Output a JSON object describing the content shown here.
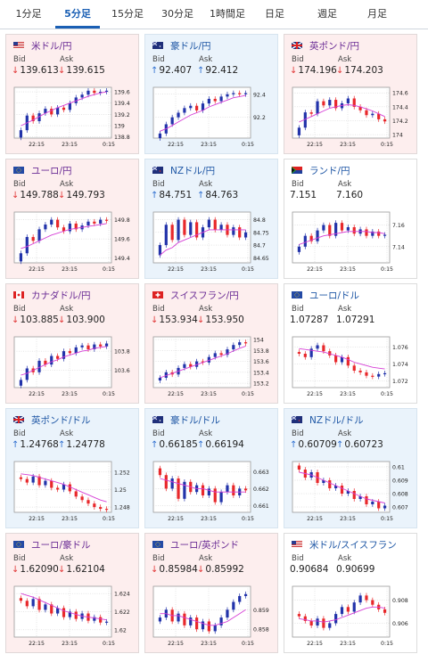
{
  "tabs": [
    {
      "label": "1分足",
      "active": false
    },
    {
      "label": "5分足",
      "active": true
    },
    {
      "label": "15分足",
      "active": false
    },
    {
      "label": "30分足",
      "active": false
    },
    {
      "label": "1時間足",
      "active": false
    },
    {
      "label": "日足",
      "active": false
    },
    {
      "label": "週足",
      "active": false
    },
    {
      "label": "月足",
      "active": false
    }
  ],
  "labels": {
    "bid": "Bid",
    "ask": "Ask"
  },
  "colors": {
    "up_candle": "#2233aa",
    "down_candle": "#e8282b",
    "moving_average": "#d63fd6",
    "grid": "#cccccc"
  },
  "cards": [
    {
      "title": "米ドル/円",
      "flag": "us-flag-icon",
      "trend": "down",
      "bid": "139.613",
      "ask": "139.615",
      "chart_data": {
        "type": "candlestick",
        "x_ticks": [
          "22:15",
          "23:15",
          "0:15"
        ],
        "y_ticks": [
          "139.6",
          "139.4",
          "139.2",
          "139",
          "138.8"
        ],
        "ylim": [
          138.78,
          139.68
        ],
        "closes": [
          138.92,
          139.18,
          139.08,
          139.22,
          139.3,
          139.2,
          139.32,
          139.28,
          139.4,
          139.5,
          139.55,
          139.62,
          139.58,
          139.6,
          139.62
        ],
        "ma": [
          139.0,
          139.05,
          139.1,
          139.16,
          139.22,
          139.27,
          139.32,
          139.36,
          139.4,
          139.44,
          139.48,
          139.52,
          139.55,
          139.58,
          139.6
        ]
      }
    },
    {
      "title": "豪ドル/円",
      "flag": "au-flag-icon",
      "trend": "up",
      "bid": "92.407",
      "ask": "92.412",
      "chart_data": {
        "type": "candlestick",
        "x_ticks": [
          "22:15",
          "23:15",
          "0:15"
        ],
        "y_ticks": [
          "92.4",
          "92.2"
        ],
        "ylim": [
          92.02,
          92.46
        ],
        "closes": [
          92.06,
          92.14,
          92.2,
          92.24,
          92.28,
          92.3,
          92.26,
          92.32,
          92.36,
          92.34,
          92.38,
          92.4,
          92.41,
          92.4,
          92.41
        ],
        "ma": [
          92.08,
          92.1,
          92.13,
          92.16,
          92.19,
          92.22,
          92.24,
          92.26,
          92.29,
          92.31,
          92.33,
          92.35,
          92.37,
          92.38,
          92.39
        ]
      }
    },
    {
      "title": "英ポンド/円",
      "flag": "uk-flag-icon",
      "trend": "down",
      "bid": "174.196",
      "ask": "174.203",
      "chart_data": {
        "type": "candlestick",
        "x_ticks": [
          "22:15",
          "23:15",
          "0:15"
        ],
        "y_ticks": [
          "174.6",
          "174.4",
          "174.2",
          "174"
        ],
        "ylim": [
          173.95,
          174.68
        ],
        "closes": [
          174.1,
          174.32,
          174.3,
          174.48,
          174.42,
          174.5,
          174.38,
          174.45,
          174.52,
          174.4,
          174.35,
          174.28,
          174.3,
          174.22,
          174.19
        ],
        "ma": [
          174.18,
          174.22,
          174.26,
          174.3,
          174.34,
          174.38,
          174.4,
          174.42,
          174.43,
          174.42,
          174.4,
          174.37,
          174.34,
          174.3,
          174.26
        ]
      }
    },
    {
      "title": "ユーロ/円",
      "flag": "eu-flag-icon",
      "trend": "down",
      "bid": "149.788",
      "ask": "149.793",
      "chart_data": {
        "type": "candlestick",
        "x_ticks": [
          "22:15",
          "23:15",
          "0:15"
        ],
        "y_ticks": [
          "149.8",
          "149.6",
          "149.4"
        ],
        "ylim": [
          149.35,
          149.88
        ],
        "closes": [
          149.45,
          149.62,
          149.58,
          149.7,
          149.75,
          149.8,
          149.72,
          149.68,
          149.76,
          149.7,
          149.74,
          149.78,
          149.76,
          149.8,
          149.79
        ],
        "ma": [
          149.5,
          149.52,
          149.55,
          149.58,
          149.61,
          149.64,
          149.66,
          149.68,
          149.7,
          149.71,
          149.72,
          149.73,
          149.74,
          149.75,
          149.76
        ]
      }
    },
    {
      "title": "NZドル/円",
      "flag": "nz-flag-icon",
      "trend": "up",
      "bid": "84.751",
      "ask": "84.763",
      "chart_data": {
        "type": "candlestick",
        "x_ticks": [
          "22:15",
          "23:15",
          "0:15"
        ],
        "y_ticks": [
          "84.8",
          "84.75",
          "84.7",
          "84.65"
        ],
        "ylim": [
          84.63,
          84.83
        ],
        "closes": [
          84.7,
          84.78,
          84.72,
          84.8,
          84.74,
          84.79,
          84.73,
          84.77,
          84.8,
          84.76,
          84.78,
          84.74,
          84.77,
          84.73,
          84.75
        ],
        "ma": [
          84.66,
          84.68,
          84.69,
          84.71,
          84.72,
          84.73,
          84.74,
          84.75,
          84.76,
          84.76,
          84.76,
          84.76,
          84.76,
          84.76,
          84.76
        ]
      }
    },
    {
      "title": "ランド/円",
      "flag": "za-flag-icon",
      "trend": "flat",
      "bid": "7.151",
      "ask": "7.160",
      "chart_data": {
        "type": "candlestick",
        "x_ticks": [
          "22:15",
          "23:15",
          "0:15"
        ],
        "y_ticks": [
          "7.16",
          "7.14"
        ],
        "ylim": [
          7.125,
          7.172
        ],
        "closes": [
          7.14,
          7.15,
          7.145,
          7.155,
          7.16,
          7.15,
          7.162,
          7.155,
          7.158,
          7.152,
          7.156,
          7.15,
          7.154,
          7.15,
          7.151
        ],
        "ma": [
          7.142,
          7.144,
          7.146,
          7.148,
          7.15,
          7.151,
          7.152,
          7.153,
          7.154,
          7.154,
          7.154,
          7.154,
          7.153,
          7.153,
          7.152
        ]
      }
    },
    {
      "title": "カナダドル/円",
      "flag": "ca-flag-icon",
      "trend": "down",
      "bid": "103.885",
      "ask": "103.900",
      "chart_data": {
        "type": "candlestick",
        "x_ticks": [
          "22:15",
          "23:15",
          "0:15"
        ],
        "y_ticks": [
          "103.8",
          "103.6"
        ],
        "ylim": [
          103.42,
          103.95
        ],
        "closes": [
          103.5,
          103.62,
          103.58,
          103.7,
          103.66,
          103.75,
          103.72,
          103.8,
          103.78,
          103.84,
          103.86,
          103.82,
          103.87,
          103.85,
          103.88
        ],
        "ma": [
          103.55,
          103.57,
          103.6,
          103.63,
          103.66,
          103.69,
          103.71,
          103.74,
          103.76,
          103.78,
          103.8,
          103.81,
          103.83,
          103.84,
          103.85
        ]
      }
    },
    {
      "title": "スイスフラン/円",
      "flag": "ch-flag-icon",
      "trend": "down",
      "bid": "153.934",
      "ask": "153.950",
      "chart_data": {
        "type": "candlestick",
        "x_ticks": [
          "22:15",
          "23:15",
          "0:15"
        ],
        "y_ticks": [
          "154",
          "153.8",
          "153.6",
          "153.4",
          "153.2"
        ],
        "ylim": [
          153.12,
          154.05
        ],
        "closes": [
          153.3,
          153.4,
          153.36,
          153.48,
          153.55,
          153.5,
          153.6,
          153.58,
          153.68,
          153.75,
          153.72,
          153.82,
          153.9,
          153.95,
          153.93
        ],
        "ma": [
          153.3,
          153.34,
          153.38,
          153.42,
          153.46,
          153.5,
          153.54,
          153.58,
          153.62,
          153.66,
          153.7,
          153.74,
          153.79,
          153.84,
          153.88
        ]
      }
    },
    {
      "title": "ユーロ/ドル",
      "flag": "eu-flag-icon",
      "trend": "flat",
      "bid": "1.07287",
      "ask": "1.07291",
      "chart_data": {
        "type": "candlestick",
        "x_ticks": [
          "22:15",
          "23:15",
          "0:15"
        ],
        "y_ticks": [
          "1.076",
          "1.074",
          "1.072"
        ],
        "ylim": [
          1.0712,
          1.0772
        ],
        "closes": [
          1.0752,
          1.0748,
          1.0758,
          1.0762,
          1.0755,
          1.075,
          1.0742,
          1.0748,
          1.0738,
          1.0732,
          1.073,
          1.0726,
          1.0725,
          1.0728,
          1.0729
        ],
        "ma": [
          1.0758,
          1.0757,
          1.0756,
          1.0755,
          1.0754,
          1.0752,
          1.075,
          1.0748,
          1.0745,
          1.0742,
          1.074,
          1.0738,
          1.0736,
          1.0735,
          1.0734
        ]
      }
    },
    {
      "title": "英ポンド/ドル",
      "flag": "uk-flag-icon",
      "trend": "up",
      "bid": "1.24768",
      "ask": "1.24778",
      "chart_data": {
        "type": "candlestick",
        "x_ticks": [
          "22:15",
          "23:15",
          "0:15"
        ],
        "y_ticks": [
          "1.252",
          "1.25",
          "1.248"
        ],
        "ylim": [
          1.2474,
          1.2532
        ],
        "closes": [
          1.2512,
          1.2508,
          1.2515,
          1.2505,
          1.251,
          1.2502,
          1.25,
          1.2506,
          1.2498,
          1.2492,
          1.2488,
          1.2484,
          1.248,
          1.2478,
          1.2477
        ],
        "ma": [
          1.2518,
          1.2517,
          1.2516,
          1.2514,
          1.2512,
          1.251,
          1.2508,
          1.2506,
          1.2503,
          1.25,
          1.2497,
          1.2494,
          1.2491,
          1.2488,
          1.2486
        ]
      }
    },
    {
      "title": "豪ドル/ドル",
      "flag": "au-flag-icon",
      "trend": "up",
      "bid": "0.66185",
      "ask": "0.66194",
      "chart_data": {
        "type": "candlestick",
        "x_ticks": [
          "22:15",
          "23:15",
          "0:15"
        ],
        "y_ticks": [
          "0.663",
          "0.662",
          "0.661"
        ],
        "ylim": [
          0.6606,
          0.6636
        ],
        "closes": [
          0.6628,
          0.662,
          0.6626,
          0.6614,
          0.6624,
          0.6618,
          0.6622,
          0.6616,
          0.662,
          0.6612,
          0.6618,
          0.6622,
          0.6616,
          0.662,
          0.6619
        ],
        "ma": [
          0.6626,
          0.6625,
          0.6624,
          0.6623,
          0.6622,
          0.6621,
          0.662,
          0.662,
          0.6619,
          0.6618,
          0.6618,
          0.6618,
          0.6618,
          0.6618,
          0.6618
        ]
      }
    },
    {
      "title": "NZドル/ドル",
      "flag": "nz-flag-icon",
      "trend": "up",
      "bid": "0.60709",
      "ask": "0.60723",
      "chart_data": {
        "type": "candlestick",
        "x_ticks": [
          "22:15",
          "23:15",
          "0:15"
        ],
        "y_ticks": [
          "0.61",
          "0.609",
          "0.608",
          "0.607"
        ],
        "ylim": [
          0.6066,
          0.6104
        ],
        "closes": [
          0.6098,
          0.6092,
          0.6096,
          0.6088,
          0.609,
          0.6084,
          0.6086,
          0.608,
          0.6082,
          0.6076,
          0.6078,
          0.6072,
          0.6074,
          0.6069,
          0.6071
        ],
        "ma": [
          0.6096,
          0.6095,
          0.6094,
          0.6092,
          0.609,
          0.6088,
          0.6086,
          0.6084,
          0.6082,
          0.608,
          0.6078,
          0.6076,
          0.6075,
          0.6074,
          0.6073
        ]
      }
    },
    {
      "title": "ユーロ/豪ドル",
      "flag": "eu-flag-icon",
      "trend": "down",
      "bid": "1.62090",
      "ask": "1.62104",
      "chart_data": {
        "type": "candlestick",
        "x_ticks": [
          "22:15",
          "23:15",
          "0:15"
        ],
        "y_ticks": [
          "1.624",
          "1.622",
          "1.62"
        ],
        "ylim": [
          1.6192,
          1.6248
        ],
        "closes": [
          1.6232,
          1.6226,
          1.6234,
          1.6222,
          1.6228,
          1.6218,
          1.6224,
          1.6214,
          1.622,
          1.6212,
          1.6218,
          1.621,
          1.6214,
          1.6208,
          1.6209
        ],
        "ma": [
          1.624,
          1.6238,
          1.6236,
          1.6233,
          1.623,
          1.6227,
          1.6224,
          1.6221,
          1.6219,
          1.6217,
          1.6215,
          1.6214,
          1.6213,
          1.6212,
          1.6211
        ]
      }
    },
    {
      "title": "ユーロ/英ポンド",
      "flag": "eu-flag-icon",
      "trend": "down",
      "bid": "0.85984",
      "ask": "0.85992",
      "chart_data": {
        "type": "candlestick",
        "x_ticks": [
          "22:15",
          "23:15",
          "0:15"
        ],
        "y_ticks": [
          "0.859",
          "0.858"
        ],
        "ylim": [
          0.8576,
          0.8602
        ],
        "closes": [
          0.8586,
          0.859,
          0.8584,
          0.8588,
          0.8582,
          0.8586,
          0.858,
          0.8584,
          0.8579,
          0.8582,
          0.8586,
          0.859,
          0.8594,
          0.8597,
          0.8598
        ],
        "ma": [
          0.8588,
          0.8588,
          0.8587,
          0.8587,
          0.8586,
          0.8585,
          0.8584,
          0.8583,
          0.8582,
          0.8582,
          0.8583,
          0.8584,
          0.8586,
          0.8588,
          0.859
        ]
      }
    },
    {
      "title": "米ドル/スイスフラン",
      "flag": "us-flag-icon",
      "trend": "flat",
      "bid": "0.90684",
      "ask": "0.90699",
      "chart_data": {
        "type": "candlestick",
        "x_ticks": [
          "22:15",
          "23:15",
          "0:15"
        ],
        "y_ticks": [
          "0.908",
          "0.906"
        ],
        "ylim": [
          0.9048,
          0.9092
        ],
        "closes": [
          0.9066,
          0.9062,
          0.9058,
          0.9064,
          0.9056,
          0.906,
          0.9068,
          0.9074,
          0.907,
          0.9078,
          0.9084,
          0.908,
          0.9076,
          0.9072,
          0.9069
        ],
        "ma": [
          0.9064,
          0.9063,
          0.9062,
          0.9062,
          0.9061,
          0.9062,
          0.9063,
          0.9065,
          0.9067,
          0.9069,
          0.9071,
          0.9073,
          0.9074,
          0.9074,
          0.9073
        ]
      }
    }
  ]
}
